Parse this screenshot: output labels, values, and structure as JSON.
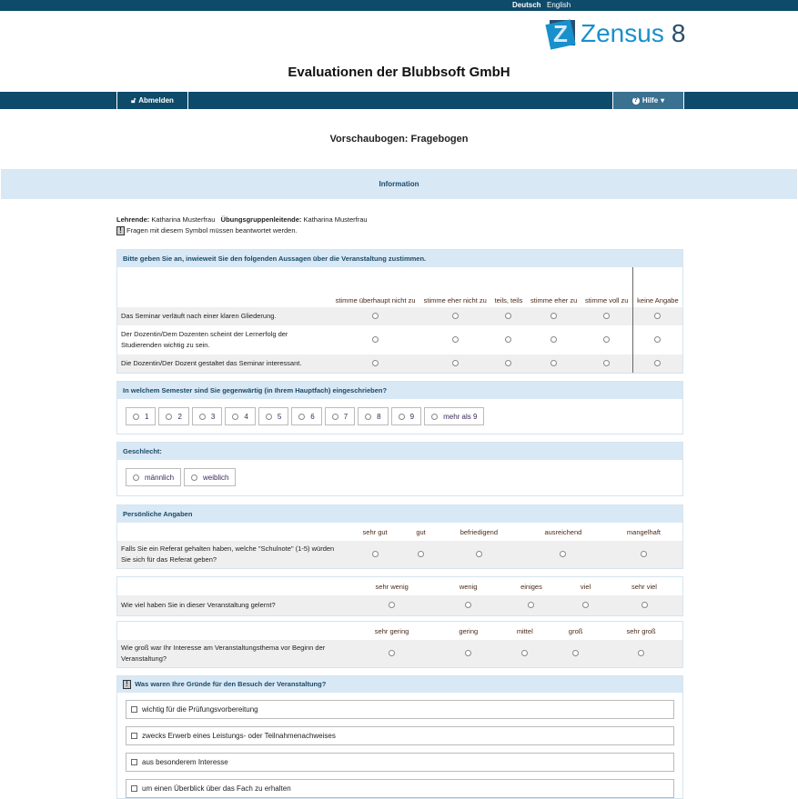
{
  "lang": [
    "Deutsch",
    "English"
  ],
  "logo": {
    "text": "Zensus",
    "version": "8"
  },
  "site_title": "Evaluationen der Blubbsoft GmbH",
  "nav": {
    "logout": "Abmelden",
    "help": "Hilfe"
  },
  "page_heading": "Vorschaubogen: Fragebogen",
  "info_label": "Information",
  "meta": {
    "lecturer_label": "Lehrende:",
    "lecturer": "Katharina Musterfrau",
    "tutor_label": "Übungsgruppenleitende:",
    "tutor": "Katharina Musterfrau",
    "required_note": "Fragen mit diesem Symbol müssen beantwortet werden."
  },
  "q1": {
    "title": "Bitte geben Sie an, inwieweit Sie den folgenden Aussagen über die Veranstaltung zustimmen.",
    "cols": [
      "stimme überhaupt nicht zu",
      "stimme eher nicht zu",
      "teils, teils",
      "stimme eher zu",
      "stimme voll zu",
      "keine Angabe"
    ],
    "rows": [
      "Das Seminar verläuft nach einer klaren Gliederung.",
      "Der Dozentin/Dem Dozenten scheint der Lernerfolg der Studierenden wichtig zu sein.",
      "Die Dozentin/Der Dozent gestaltet das Seminar interessant."
    ]
  },
  "q2": {
    "title": "In welchem Semester sind Sie gegenwärtig (in Ihrem Hauptfach) eingeschrieben?",
    "options": [
      "1",
      "2",
      "3",
      "4",
      "5",
      "6",
      "7",
      "8",
      "9",
      "mehr als 9"
    ]
  },
  "q3": {
    "title": "Geschlecht:",
    "options": [
      "männlich",
      "weiblich"
    ]
  },
  "q4": {
    "title": "Persönliche Angaben",
    "items": [
      {
        "cols": [
          "sehr gut",
          "gut",
          "befriedigend",
          "ausreichend",
          "mangelhaft"
        ],
        "question": "Falls Sie ein Referat gehalten haben, welche \"Schulnote\" (1-5) würden Sie sich für das Referat geben?"
      },
      {
        "cols": [
          "sehr wenig",
          "wenig",
          "einiges",
          "viel",
          "sehr viel"
        ],
        "question": "Wie viel haben Sie in dieser Veranstaltung gelernt?"
      },
      {
        "cols": [
          "sehr gering",
          "gering",
          "mittel",
          "groß",
          "sehr groß"
        ],
        "question": "Wie groß war Ihr Interesse am Veranstaltungsthema vor Beginn der Veranstaltung?"
      }
    ]
  },
  "q5": {
    "title": "Was waren Ihre Gründe für den Besuch der Veranstaltung?",
    "options": [
      "wichtig für die Prüfungsvorbereitung",
      "zwecks Erwerb eines Leistungs- oder Teilnahmenachweises",
      "aus besonderem Interesse",
      "um einen Überblick über das Fach zu erhalten"
    ]
  },
  "colors": {
    "nav": "#0e4a6a",
    "band": "#d9e8f5",
    "brand": "#1890cc"
  }
}
